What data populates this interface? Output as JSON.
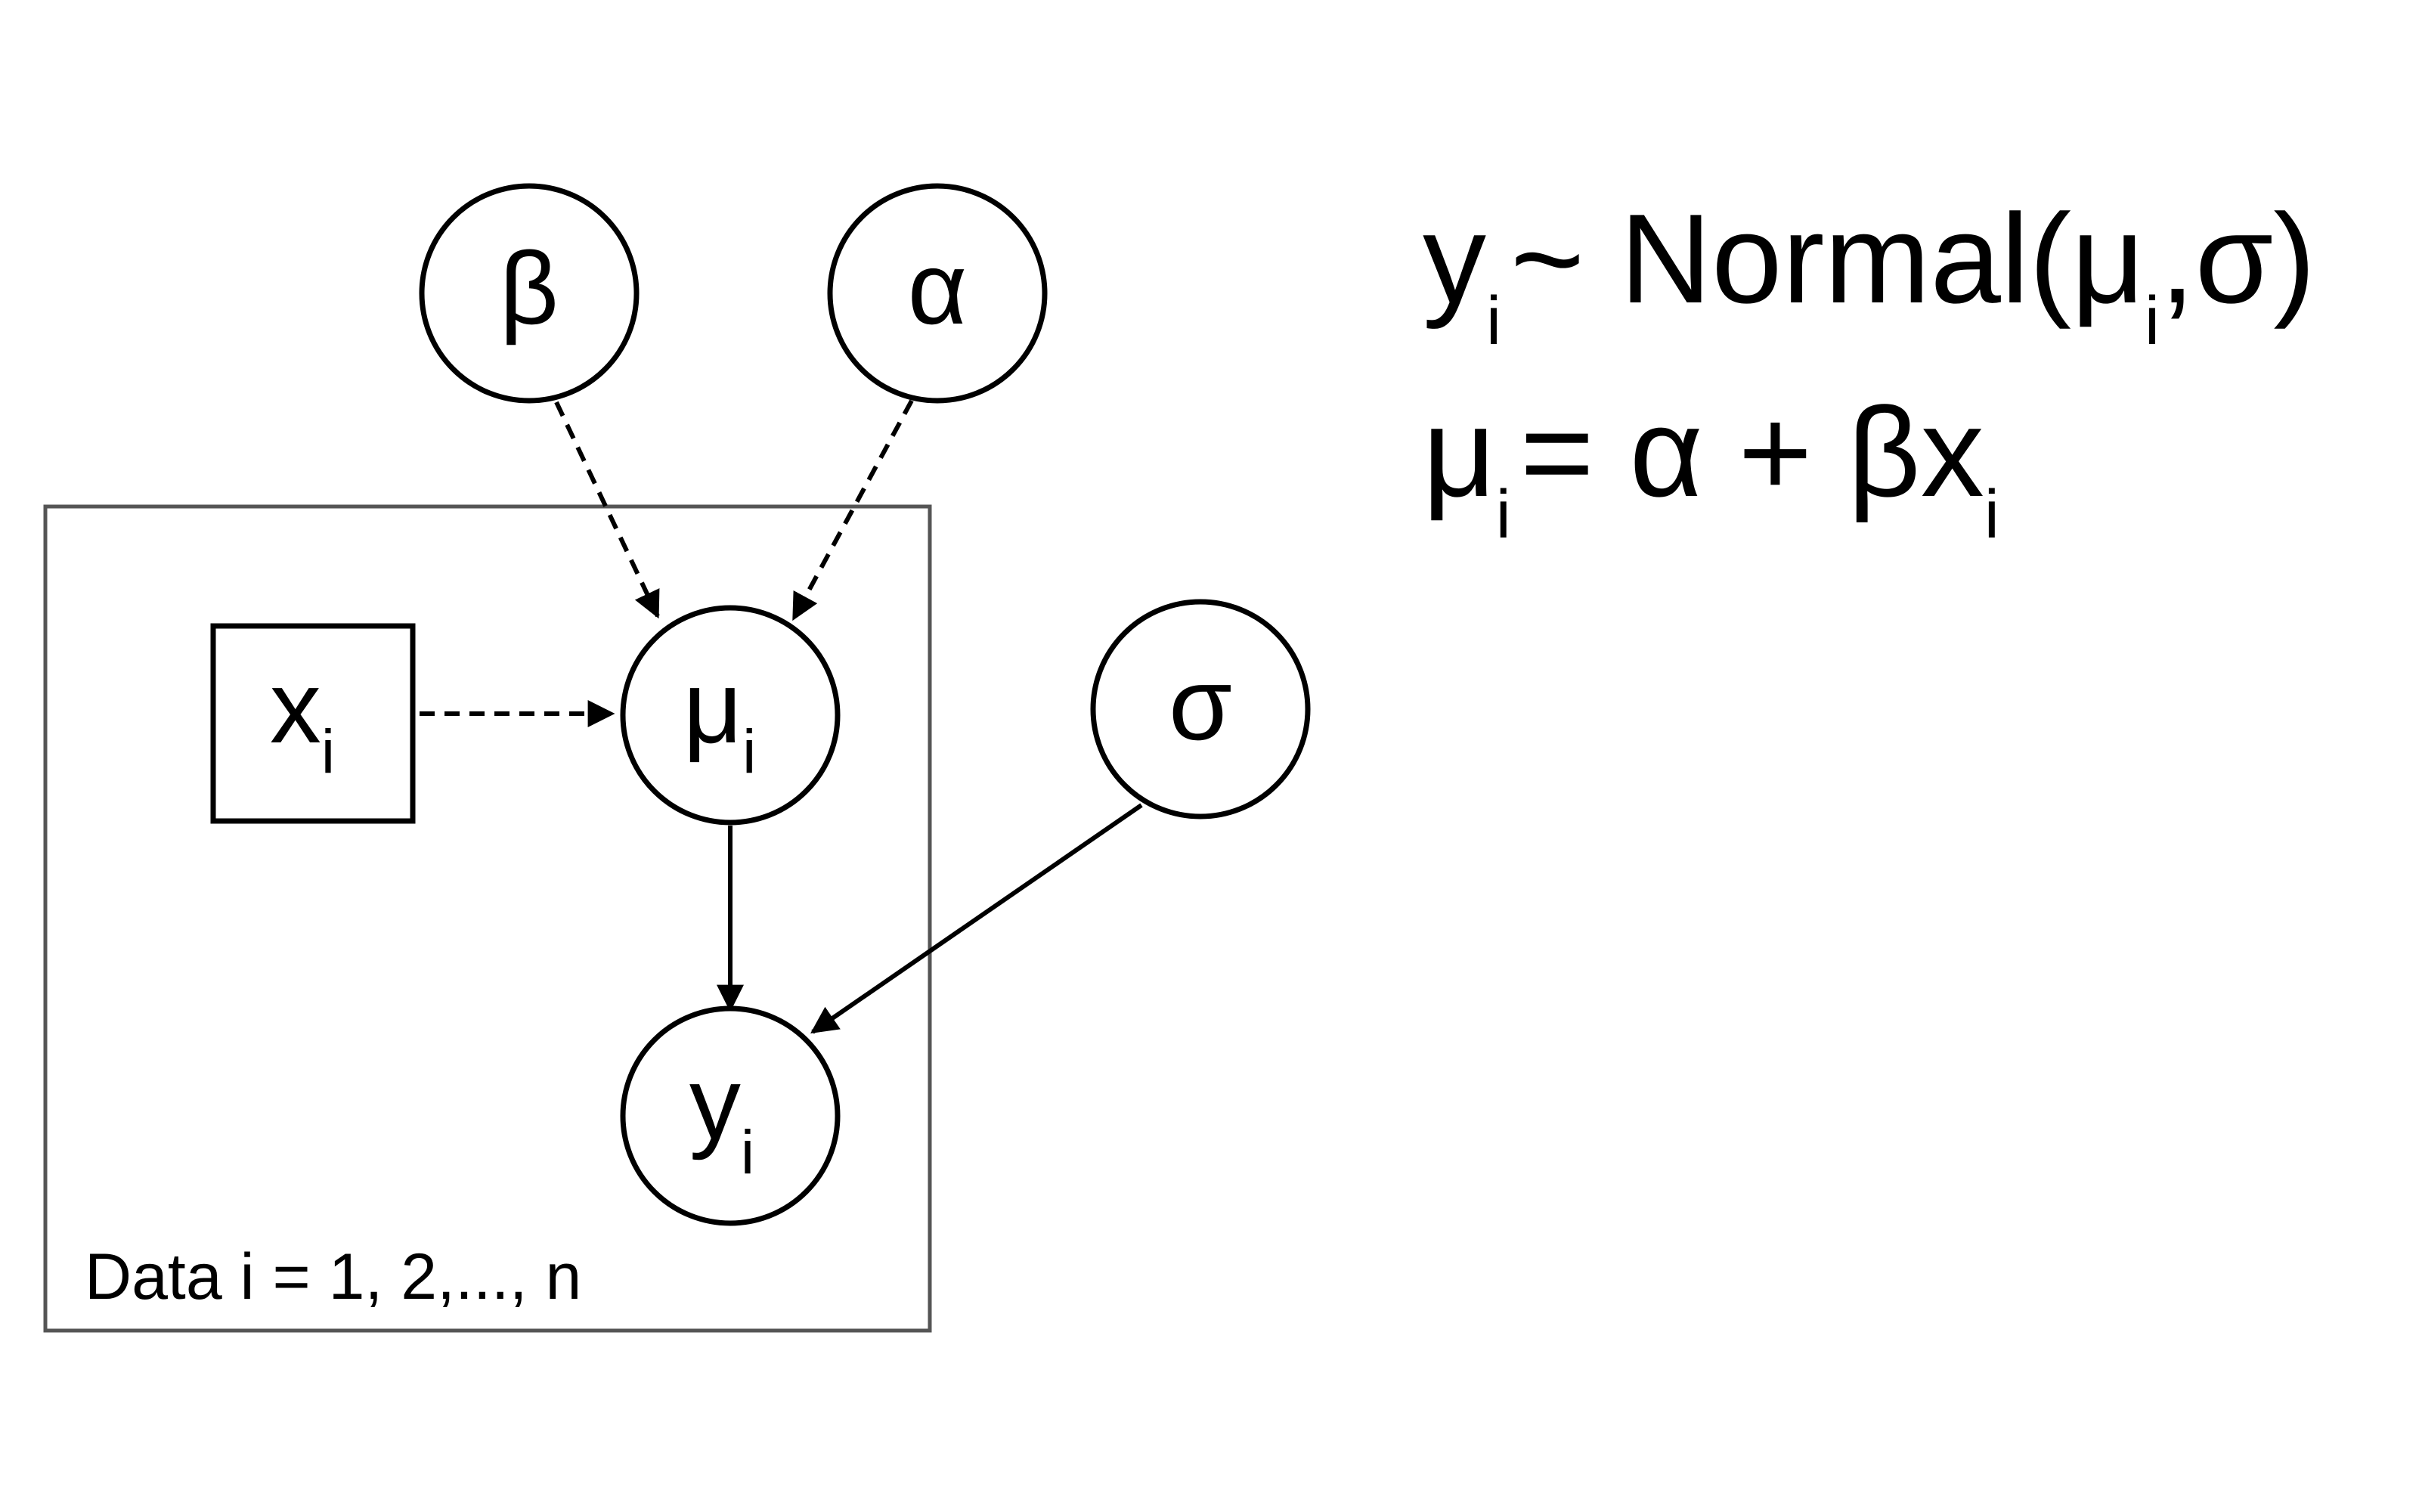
{
  "nodes": {
    "beta": {
      "symbol": "β"
    },
    "alpha": {
      "symbol": "α"
    },
    "sigma": {
      "symbol": "σ"
    },
    "mu": {
      "symbol": "μ",
      "subscript": "i"
    },
    "x": {
      "symbol": "x",
      "subscript": "i"
    },
    "y": {
      "symbol": "y",
      "subscript": "i"
    }
  },
  "plate": {
    "label": "Data i = 1, 2,..., n"
  },
  "edges": [
    {
      "from": "beta",
      "to": "mu",
      "style": "dashed"
    },
    {
      "from": "alpha",
      "to": "mu",
      "style": "dashed"
    },
    {
      "from": "x",
      "to": "mu",
      "style": "dashed"
    },
    {
      "from": "mu",
      "to": "y",
      "style": "solid"
    },
    {
      "from": "sigma",
      "to": "y",
      "style": "solid"
    }
  ],
  "equations": {
    "eq1": {
      "lhs": "y",
      "lhs_sub": "i",
      "rel": "~ Normal(μ",
      "mid_sub": "i",
      "rest": ",σ)"
    },
    "eq2": {
      "lhs": "μ",
      "lhs_sub": "i",
      "rhs": "= α + βx",
      "rhs_sub": "i"
    }
  },
  "colors": {
    "stroke": "#000000",
    "plate_stroke": "#555555",
    "background": "#ffffff"
  }
}
